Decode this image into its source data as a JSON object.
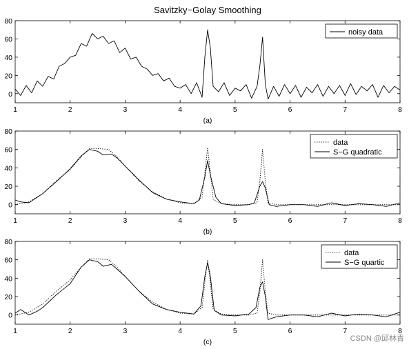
{
  "figure": {
    "title": "Savitzky−Golay Smoothing",
    "watermark": "CSDN @邱林青"
  },
  "chart_data": [
    {
      "type": "line",
      "panel_label": "(a)",
      "xlim": [
        1,
        8
      ],
      "ylim": [
        -10,
        80
      ],
      "x_ticks": [
        1,
        2,
        3,
        4,
        5,
        6,
        7,
        8
      ],
      "y_ticks": [
        0,
        20,
        40,
        60,
        80
      ],
      "legend": {
        "placement": "top-right",
        "entries": [
          "noisy data"
        ]
      },
      "series": [
        {
          "name": "noisy data",
          "style": "solid",
          "x": [
            1.0,
            1.1,
            1.2,
            1.3,
            1.4,
            1.5,
            1.6,
            1.7,
            1.8,
            1.9,
            2.0,
            2.1,
            2.2,
            2.3,
            2.4,
            2.5,
            2.6,
            2.7,
            2.8,
            2.9,
            3.0,
            3.1,
            3.2,
            3.3,
            3.4,
            3.5,
            3.6,
            3.7,
            3.8,
            3.9,
            4.0,
            4.1,
            4.2,
            4.3,
            4.4,
            4.45,
            4.5,
            4.55,
            4.6,
            4.7,
            4.8,
            4.9,
            5.0,
            5.1,
            5.2,
            5.3,
            5.4,
            5.45,
            5.5,
            5.55,
            5.6,
            5.7,
            5.8,
            5.9,
            6.0,
            6.1,
            6.2,
            6.3,
            6.4,
            6.5,
            6.6,
            6.7,
            6.8,
            6.9,
            7.0,
            7.1,
            7.2,
            7.3,
            7.4,
            7.5,
            7.6,
            7.7,
            7.8,
            7.9,
            8.0
          ],
          "y": [
            5,
            -2,
            9,
            1,
            14,
            8,
            19,
            16,
            30,
            33,
            40,
            42,
            55,
            52,
            66,
            60,
            63,
            55,
            58,
            45,
            50,
            38,
            40,
            30,
            27,
            20,
            22,
            14,
            17,
            8,
            6,
            10,
            0,
            12,
            -4,
            40,
            70,
            50,
            8,
            2,
            12,
            -2,
            6,
            3,
            10,
            -5,
            8,
            30,
            62,
            10,
            -6,
            8,
            -3,
            10,
            0,
            9,
            -4,
            7,
            1,
            10,
            -3,
            8,
            0,
            9,
            -2,
            11,
            -1,
            8,
            3,
            10,
            -4,
            9,
            1,
            8,
            4
          ]
        }
      ]
    },
    {
      "type": "line",
      "panel_label": "(b)",
      "xlim": [
        1,
        8
      ],
      "ylim": [
        -10,
        80
      ],
      "x_ticks": [
        1,
        2,
        3,
        4,
        5,
        6,
        7,
        8
      ],
      "y_ticks": [
        0,
        20,
        40,
        60,
        80
      ],
      "legend": {
        "placement": "top-right",
        "entries": [
          "data",
          "S−G quadratic"
        ]
      },
      "series": [
        {
          "name": "data",
          "style": "dotted",
          "x": [
            1.0,
            1.25,
            1.5,
            1.75,
            2.0,
            2.2,
            2.35,
            2.5,
            2.7,
            2.85,
            3.0,
            3.25,
            3.5,
            3.75,
            4.0,
            4.25,
            4.4,
            4.45,
            4.5,
            4.55,
            4.6,
            4.75,
            5.0,
            5.25,
            5.4,
            5.45,
            5.5,
            5.55,
            5.6,
            5.75,
            6.0,
            6.5,
            7.0,
            7.5,
            8.0
          ],
          "y": [
            0,
            3,
            12,
            26,
            38,
            52,
            61,
            61,
            60,
            52,
            42,
            26,
            14,
            6,
            2,
            1,
            8,
            35,
            62,
            35,
            6,
            1,
            0,
            0,
            2,
            25,
            60,
            25,
            2,
            0,
            0,
            0,
            0,
            0,
            0
          ]
        },
        {
          "name": "S−G quadratic",
          "style": "solid",
          "x": [
            1.0,
            1.1,
            1.25,
            1.5,
            1.75,
            2.0,
            2.2,
            2.35,
            2.5,
            2.6,
            2.75,
            2.85,
            3.0,
            3.25,
            3.5,
            3.75,
            4.0,
            4.25,
            4.35,
            4.45,
            4.5,
            4.55,
            4.65,
            4.75,
            5.0,
            5.25,
            5.35,
            5.45,
            5.5,
            5.55,
            5.62,
            5.75,
            6.0,
            6.25,
            6.5,
            6.75,
            7.0,
            7.25,
            7.5,
            7.75,
            8.0
          ],
          "y": [
            5,
            3,
            2,
            12,
            25,
            39,
            53,
            60,
            58,
            54,
            55,
            51,
            42,
            27,
            13,
            6,
            3,
            1,
            5,
            30,
            48,
            32,
            8,
            1,
            -1,
            0,
            2,
            20,
            25,
            18,
            0,
            -2,
            0,
            0,
            -2,
            2,
            -1,
            1,
            0,
            -2,
            2
          ]
        }
      ]
    },
    {
      "type": "line",
      "panel_label": "(c)",
      "xlim": [
        1,
        8
      ],
      "ylim": [
        -10,
        80
      ],
      "x_ticks": [
        1,
        2,
        3,
        4,
        5,
        6,
        7,
        8
      ],
      "y_ticks": [
        0,
        20,
        40,
        60,
        80
      ],
      "legend": {
        "placement": "top-right",
        "entries": [
          "data",
          "S−G quartic"
        ]
      },
      "series": [
        {
          "name": "data",
          "style": "dotted",
          "x": [
            1.0,
            1.25,
            1.5,
            1.75,
            2.0,
            2.2,
            2.35,
            2.5,
            2.7,
            2.85,
            3.0,
            3.25,
            3.5,
            3.75,
            4.0,
            4.25,
            4.4,
            4.45,
            4.5,
            4.55,
            4.6,
            4.75,
            5.0,
            5.25,
            5.4,
            5.45,
            5.5,
            5.55,
            5.6,
            5.75,
            6.0,
            6.5,
            7.0,
            7.5,
            8.0
          ],
          "y": [
            0,
            3,
            12,
            26,
            38,
            52,
            61,
            61,
            60,
            52,
            42,
            26,
            14,
            6,
            2,
            1,
            8,
            35,
            60,
            35,
            6,
            1,
            0,
            0,
            2,
            25,
            60,
            25,
            2,
            0,
            0,
            0,
            0,
            0,
            0
          ]
        },
        {
          "name": "S−G quartic",
          "style": "solid",
          "x": [
            1.0,
            1.1,
            1.25,
            1.4,
            1.5,
            1.75,
            2.0,
            2.2,
            2.35,
            2.5,
            2.6,
            2.75,
            2.85,
            3.0,
            3.25,
            3.5,
            3.75,
            4.0,
            4.25,
            4.38,
            4.45,
            4.5,
            4.55,
            4.62,
            4.75,
            5.0,
            5.25,
            5.38,
            5.45,
            5.5,
            5.55,
            5.6,
            5.75,
            6.0,
            6.25,
            6.5,
            6.75,
            7.0,
            7.25,
            7.5,
            7.75,
            8.0
          ],
          "y": [
            2,
            6,
            0,
            4,
            8,
            22,
            34,
            52,
            60,
            58,
            53,
            55,
            50,
            42,
            26,
            12,
            6,
            3,
            1,
            10,
            42,
            57,
            42,
            5,
            0,
            -1,
            1,
            8,
            30,
            36,
            20,
            -5,
            -2,
            0,
            0,
            -2,
            2,
            -1,
            1,
            0,
            -2,
            3
          ]
        }
      ]
    }
  ]
}
